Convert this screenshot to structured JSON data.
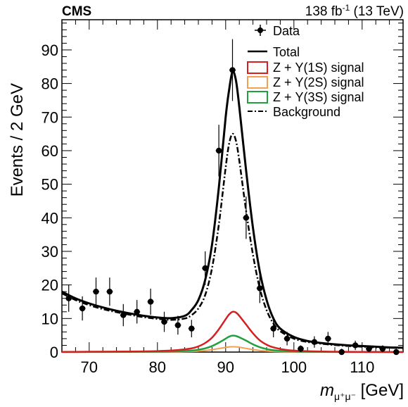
{
  "header": {
    "experiment": "CMS",
    "lumi_value": "138 fb",
    "lumi_exp": "-1",
    "lumi_energy": " (13 TeV)"
  },
  "chart_data": {
    "type": "line",
    "ylabel": "Events / 2 GeV",
    "xlabel_main": "m",
    "xlabel_sub": "μ⁺μ⁻",
    "xlabel_unit": " [GeV]",
    "xlim": [
      66,
      116
    ],
    "ylim": [
      0,
      99
    ],
    "x_ticks": [
      70,
      80,
      90,
      100,
      110
    ],
    "y_ticks": [
      0,
      10,
      20,
      30,
      40,
      50,
      60,
      70,
      80,
      90
    ],
    "legend": {
      "data": "Data",
      "total": "Total",
      "sig1": "Z + Υ(1S) signal",
      "sig2": "Z + Υ(2S) signal",
      "sig3": "Z + Υ(3S) signal",
      "background": "Background"
    },
    "colors": {
      "data": "#000000",
      "total": "#000000",
      "sig1": "#d42020",
      "sig2": "#f5a050",
      "sig3": "#22a040",
      "background": "#000000"
    },
    "data_points": {
      "x": [
        67,
        69,
        71,
        73,
        75,
        77,
        79,
        81,
        83,
        85,
        87,
        89,
        91,
        93,
        95,
        97,
        99,
        101,
        103,
        105,
        107,
        109,
        111,
        113,
        115
      ],
      "y": [
        16,
        13,
        18,
        18,
        11,
        12,
        15,
        9,
        8,
        7,
        25,
        60,
        84,
        40,
        19,
        7,
        4,
        1,
        3,
        4,
        0,
        2,
        1,
        1,
        0
      ],
      "err": [
        4,
        3.6,
        4.2,
        4.2,
        3.3,
        3.5,
        3.9,
        3,
        2.8,
        2.6,
        5,
        7.7,
        9.2,
        6.3,
        4.4,
        2.6,
        2,
        1,
        1.7,
        2,
        1,
        1.4,
        1,
        1,
        1
      ]
    },
    "background_curve": {
      "x": [
        66,
        68,
        70,
        72,
        74,
        76,
        78,
        80,
        82,
        84,
        85,
        86,
        87,
        88,
        89,
        90,
        90.5,
        91,
        91.5,
        92,
        93,
        94,
        95,
        96,
        97,
        98,
        100,
        102,
        104,
        106,
        108,
        110,
        112,
        114,
        116
      ],
      "y": [
        17.5,
        15.5,
        14,
        12.8,
        11.9,
        11.1,
        10.4,
        9.9,
        9.6,
        10,
        11,
        13,
        17,
        25,
        38,
        55,
        62,
        65,
        63,
        57,
        42,
        29,
        19,
        12.5,
        8.5,
        6.2,
        4,
        3,
        2.5,
        2.1,
        1.8,
        1.6,
        1.4,
        1.3,
        1.2
      ]
    },
    "total_curve": {
      "x": [
        66,
        68,
        70,
        72,
        74,
        76,
        78,
        80,
        82,
        84,
        85,
        86,
        87,
        88,
        89,
        90,
        90.5,
        91,
        91.5,
        92,
        93,
        94,
        95,
        96,
        97,
        98,
        100,
        102,
        104,
        106,
        108,
        110,
        112,
        114,
        116
      ],
      "y": [
        18,
        16,
        14.5,
        13.3,
        12.3,
        11.5,
        10.8,
        10.3,
        10.1,
        10.8,
        12.5,
        15.5,
        21.5,
        32,
        49,
        70,
        78,
        83.5,
        81,
        73,
        54,
        37,
        24,
        15.5,
        10,
        7,
        4.5,
        3.3,
        2.7,
        2.3,
        2,
        1.8,
        1.6,
        1.4,
        1.3
      ]
    },
    "sig1_curve": {
      "x": [
        66,
        70,
        75,
        80,
        83,
        85,
        86,
        87,
        88,
        89,
        90,
        90.5,
        91,
        91.5,
        92,
        93,
        94,
        95,
        96,
        97,
        99,
        102,
        106,
        110,
        116
      ],
      "y": [
        0.05,
        0.1,
        0.15,
        0.3,
        0.6,
        1.1,
        1.7,
        2.7,
        4.3,
        6.8,
        9.8,
        11.2,
        12,
        11.8,
        10.8,
        8.2,
        5.6,
        3.5,
        2.2,
        1.4,
        0.6,
        0.25,
        0.1,
        0.05,
        0.02
      ]
    },
    "sig3_curve": {
      "x": [
        66,
        70,
        75,
        80,
        83,
        85,
        86,
        87,
        88,
        89,
        90,
        90.5,
        91,
        91.5,
        92,
        93,
        94,
        95,
        96,
        97,
        99,
        102,
        106,
        110,
        116
      ],
      "y": [
        0.02,
        0.04,
        0.06,
        0.12,
        0.25,
        0.45,
        0.7,
        1.1,
        1.8,
        2.8,
        4,
        4.6,
        4.9,
        4.8,
        4.4,
        3.4,
        2.3,
        1.45,
        0.9,
        0.55,
        0.25,
        0.1,
        0.04,
        0.02,
        0.01
      ]
    },
    "sig2_curve": {
      "x": [
        66,
        70,
        75,
        80,
        83,
        85,
        86,
        87,
        88,
        89,
        90,
        90.5,
        91,
        91.5,
        92,
        93,
        94,
        95,
        96,
        97,
        99,
        102,
        106,
        110,
        116
      ],
      "y": [
        0.01,
        0.02,
        0.03,
        0.05,
        0.1,
        0.18,
        0.28,
        0.45,
        0.7,
        1.05,
        1.4,
        1.55,
        1.6,
        1.55,
        1.45,
        1.1,
        0.75,
        0.48,
        0.3,
        0.18,
        0.08,
        0.03,
        0.01,
        0.005,
        0.002
      ]
    }
  }
}
